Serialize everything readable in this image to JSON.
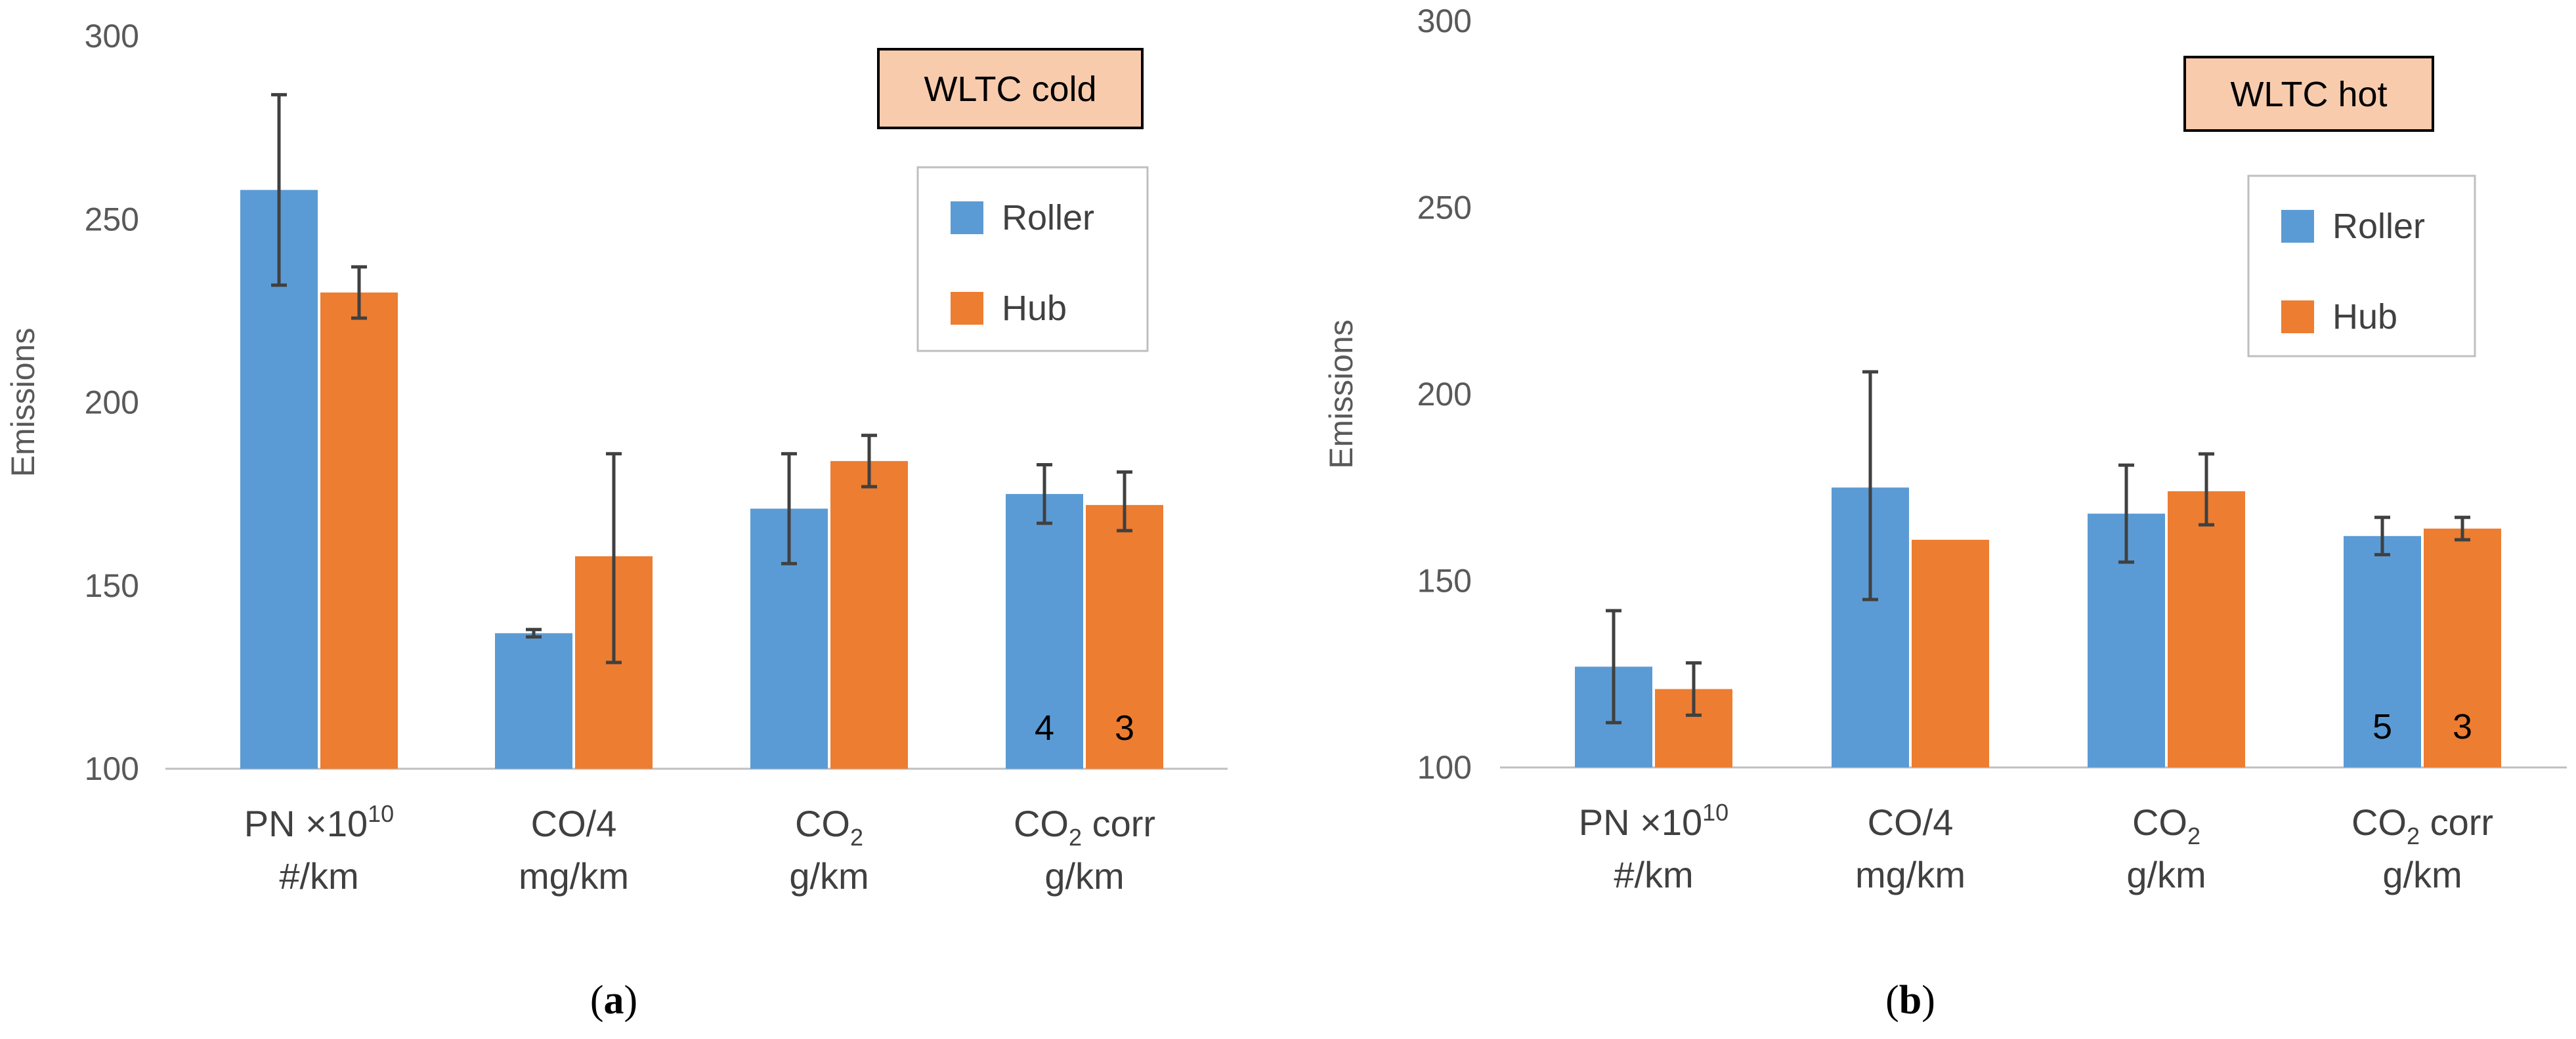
{
  "colors": {
    "roller": "#5b9bd5",
    "hub": "#ed7d31",
    "badge_fill": "#f8cbad",
    "badge_stroke": "#000000"
  },
  "chart_data": [
    {
      "type": "bar",
      "panel_label": "(a)",
      "badge": "WLTC cold",
      "ylabel": "Emissions",
      "ylim": [
        100,
        300
      ],
      "yticks": [
        100,
        150,
        200,
        250,
        300
      ],
      "grid": false,
      "legend": "top-right",
      "categories": [
        {
          "line1": "PN ×10",
          "line1_sup": "10",
          "line1_sub": "",
          "line1_tail": "",
          "line2": "#/km"
        },
        {
          "line1": "CO/4",
          "line1_sup": "",
          "line1_sub": "",
          "line1_tail": "",
          "line2": "mg/km"
        },
        {
          "line1": "CO",
          "line1_sup": "",
          "line1_sub": "2",
          "line1_tail": "",
          "line2": "g/km"
        },
        {
          "line1": "CO",
          "line1_sup": "",
          "line1_sub": "2",
          "line1_tail": " corr",
          "line2": "g/km"
        }
      ],
      "series": [
        {
          "name": "Roller",
          "color_key": "roller",
          "values": [
            258,
            137,
            171,
            175
          ],
          "err_low": [
            232,
            136,
            156,
            167
          ],
          "err_high": [
            284,
            138,
            186,
            183
          ],
          "n_labels": [
            "",
            "",
            "",
            "4"
          ]
        },
        {
          "name": "Hub",
          "color_key": "hub",
          "values": [
            230,
            158,
            184,
            172
          ],
          "err_low": [
            223,
            129,
            177,
            165
          ],
          "err_high": [
            237,
            186,
            191,
            181
          ],
          "n_labels": [
            "",
            "",
            "",
            "3"
          ]
        }
      ]
    },
    {
      "type": "bar",
      "panel_label": "(b)",
      "badge": "WLTC hot",
      "ylabel": "Emissions",
      "ylim": [
        100,
        300
      ],
      "yticks": [
        100,
        150,
        200,
        250,
        300
      ],
      "grid": false,
      "legend": "top-right",
      "categories": [
        {
          "line1": "PN ×10",
          "line1_sup": "10",
          "line1_sub": "",
          "line1_tail": "",
          "line2": "#/km"
        },
        {
          "line1": "CO/4",
          "line1_sup": "",
          "line1_sub": "",
          "line1_tail": "",
          "line2": "mg/km"
        },
        {
          "line1": "CO",
          "line1_sup": "",
          "line1_sub": "2",
          "line1_tail": "",
          "line2": "g/km"
        },
        {
          "line1": "CO",
          "line1_sup": "",
          "line1_sub": "2",
          "line1_tail": " corr",
          "line2": "g/km"
        }
      ],
      "series": [
        {
          "name": "Roller",
          "color_key": "roller",
          "values": [
            127,
            175,
            168,
            162
          ],
          "err_low": [
            112,
            145,
            155,
            157
          ],
          "err_high": [
            142,
            206,
            181,
            167
          ],
          "n_labels": [
            "",
            "",
            "",
            "5"
          ]
        },
        {
          "name": "Hub",
          "color_key": "hub",
          "values": [
            121,
            161,
            174,
            164
          ],
          "err_low": [
            114,
            null,
            165,
            161
          ],
          "err_high": [
            128,
            null,
            184,
            167
          ],
          "n_labels": [
            "",
            "",
            "",
            "3"
          ]
        }
      ]
    }
  ]
}
